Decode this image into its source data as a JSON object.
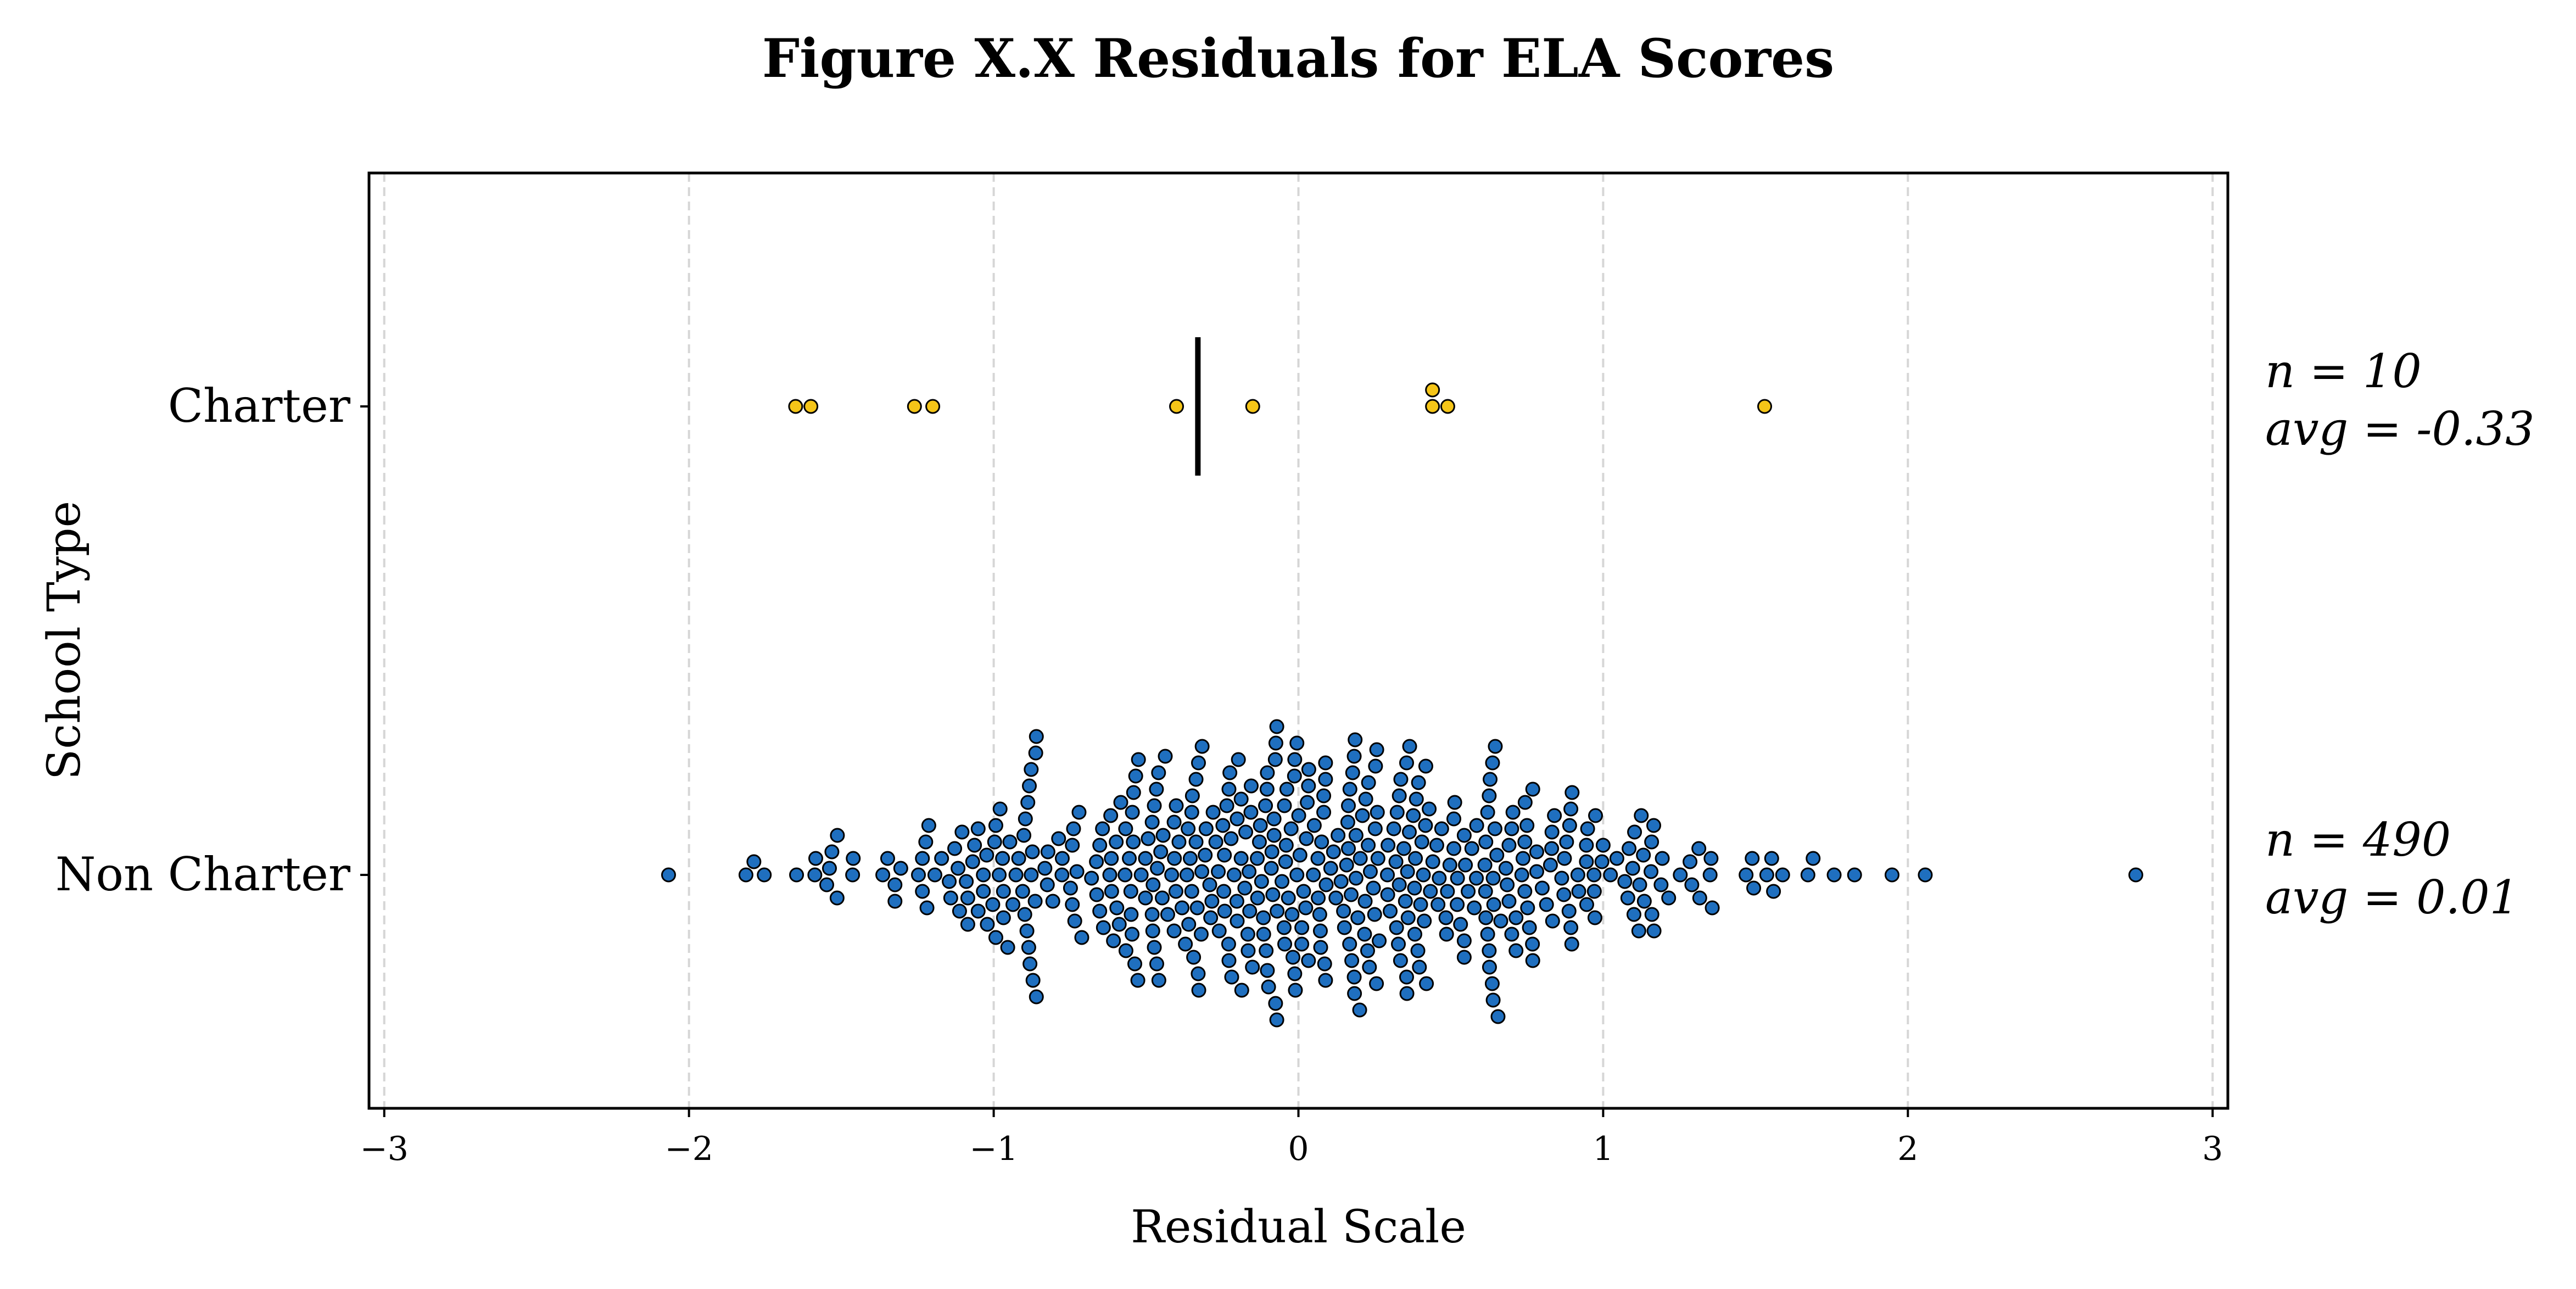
{
  "chart_data": {
    "type": "scatter",
    "subtype": "beeswarm",
    "title": "Figure X.X Residuals for ELA Scores",
    "xlabel": "Residual Scale",
    "ylabel": "School Type",
    "xlim": [
      -3.05,
      3.05
    ],
    "xticks": [
      -3,
      -2,
      -1,
      0,
      1,
      2,
      3
    ],
    "xtick_labels": [
      "−3",
      "−2",
      "−1",
      "0",
      "1",
      "2",
      "3"
    ],
    "grid": "vertical dashed at x ticks",
    "categories": [
      "Charter",
      "Non Charter"
    ],
    "series": [
      {
        "category": "Charter",
        "color": "#f5c518",
        "values": [
          -1.65,
          -1.6,
          -1.26,
          -1.2,
          -0.4,
          -0.15,
          0.44,
          0.44,
          0.49,
          1.53
        ],
        "mean": -0.33,
        "annotation": {
          "n_text": "n = 10",
          "avg_text": "avg = -0.33"
        }
      },
      {
        "category": "Non Charter",
        "color": "#1f6fbf",
        "n": 490,
        "mean": 0.01,
        "annotation": {
          "n_text": "n = 490",
          "avg_text": "avg = 0.01"
        }
      }
    ]
  }
}
